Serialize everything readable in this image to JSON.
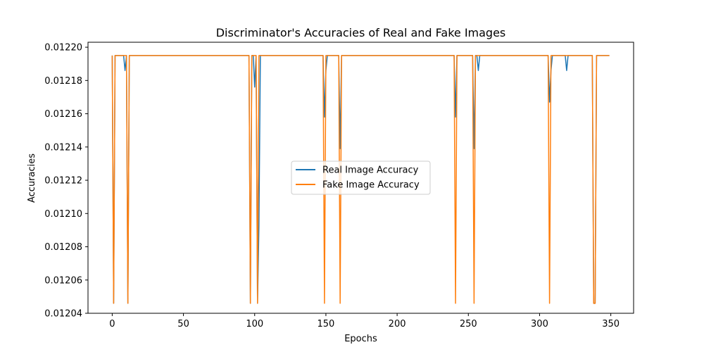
{
  "chart_data": {
    "type": "line",
    "title": "Discriminator's Accuracies of Real and Fake Images",
    "xlabel": "Epochs",
    "ylabel": "Accuracies",
    "xlim": [
      -17,
      366
    ],
    "ylim": [
      0.01204,
      0.012203
    ],
    "xticks": [
      0,
      50,
      100,
      150,
      200,
      250,
      300,
      350
    ],
    "xtick_labels": [
      "0",
      "50",
      "100",
      "150",
      "200",
      "250",
      "300",
      "350"
    ],
    "yticks": [
      0.01204,
      0.01206,
      0.01208,
      0.0121,
      0.01212,
      0.01214,
      0.01216,
      0.01218,
      0.0122
    ],
    "ytick_labels": [
      "0.01204",
      "0.01206",
      "0.01208",
      "0.01210",
      "0.01212",
      "0.01214",
      "0.01216",
      "0.01218",
      "0.01220"
    ],
    "grid": false,
    "legend_position": "center",
    "baseline": 0.012195,
    "series": [
      {
        "name": "Real Image Accuracy",
        "color": "#1f77b4",
        "dips": [
          [
            1,
            0.012046
          ],
          [
            9,
            0.012186
          ],
          [
            11,
            0.012046
          ],
          [
            97,
            0.012046
          ],
          [
            100,
            0.012176
          ],
          [
            102,
            0.012046
          ],
          [
            103,
            0.012093
          ],
          [
            149,
            0.012158
          ],
          [
            150,
            0.012186
          ],
          [
            160,
            0.012139
          ],
          [
            241,
            0.012158
          ],
          [
            254,
            0.012139
          ],
          [
            257,
            0.012186
          ],
          [
            307,
            0.012167
          ],
          [
            308,
            0.012186
          ],
          [
            319,
            0.012186
          ],
          [
            338,
            0.012046
          ],
          [
            339,
            0.012046
          ]
        ]
      },
      {
        "name": "Fake Image Accuracy",
        "color": "#ff7f0e",
        "dips": [
          [
            1,
            0.012046
          ],
          [
            11,
            0.012046
          ],
          [
            97,
            0.012046
          ],
          [
            102,
            0.012046
          ],
          [
            149,
            0.012046
          ],
          [
            160,
            0.012046
          ],
          [
            241,
            0.012046
          ],
          [
            254,
            0.012046
          ],
          [
            307,
            0.012046
          ],
          [
            338,
            0.012046
          ],
          [
            339,
            0.012046
          ]
        ]
      }
    ],
    "x_range_points": [
      0,
      349
    ]
  }
}
